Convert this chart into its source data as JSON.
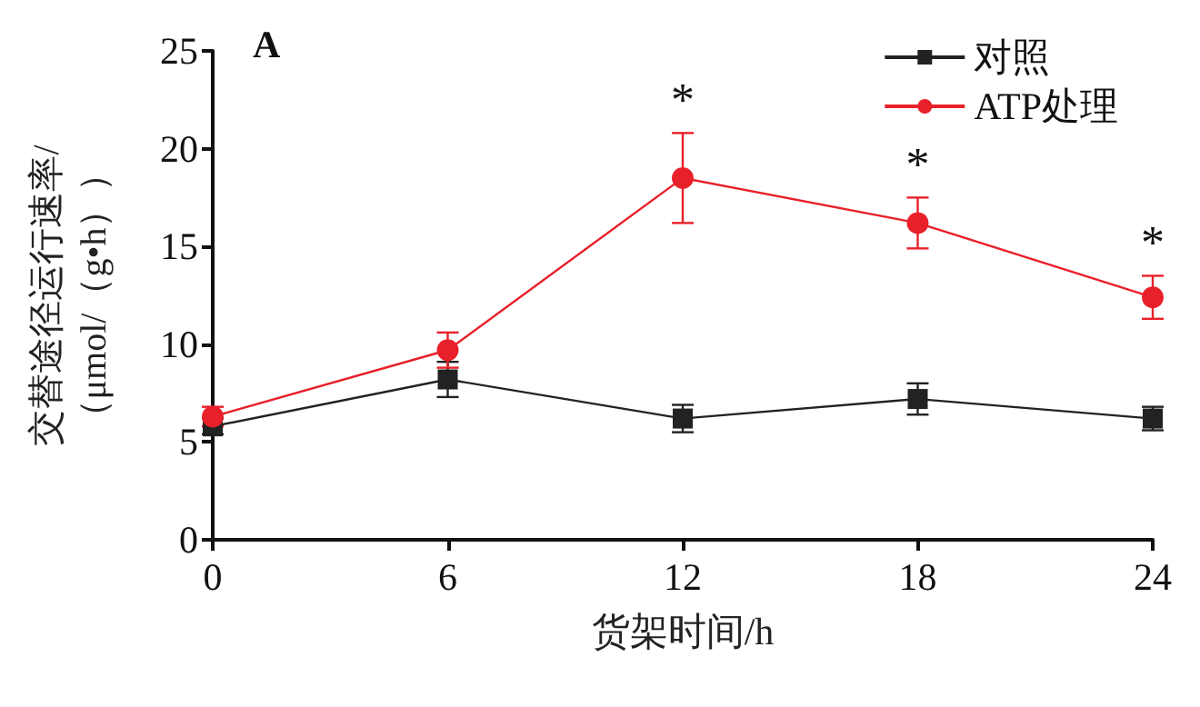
{
  "chart_data": {
    "type": "line",
    "xlabel": "货架时间/h",
    "ylabel": "交替途径运行速率/\n（μmol/（g•h））",
    "x": [
      0,
      6,
      12,
      18,
      24
    ],
    "xlim": [
      0,
      24
    ],
    "xticks": [
      0,
      6,
      12,
      18,
      24
    ],
    "ylim": [
      0,
      25
    ],
    "yticks": [
      0,
      5,
      10,
      15,
      20,
      25
    ],
    "series": [
      {
        "name": "对照",
        "color": "#222222",
        "marker": "square",
        "values": [
          5.8,
          8.2,
          6.2,
          7.2,
          6.2
        ],
        "errors": [
          0.4,
          0.9,
          0.7,
          0.8,
          0.6
        ]
      },
      {
        "name": "ATP处理",
        "color": "#e8202a",
        "marker": "circle",
        "values": [
          6.3,
          9.7,
          18.5,
          16.2,
          12.4
        ],
        "errors": [
          0.5,
          0.9,
          2.3,
          1.3,
          1.1
        ]
      }
    ],
    "annotations": [
      "A",
      {
        "text": "*",
        "x": 12,
        "y": 18.5
      },
      {
        "text": "*",
        "x": 18,
        "y": 16.2
      },
      {
        "text": "*",
        "x": 24,
        "y": 12.4
      }
    ],
    "grid": false,
    "legend": "top right"
  }
}
